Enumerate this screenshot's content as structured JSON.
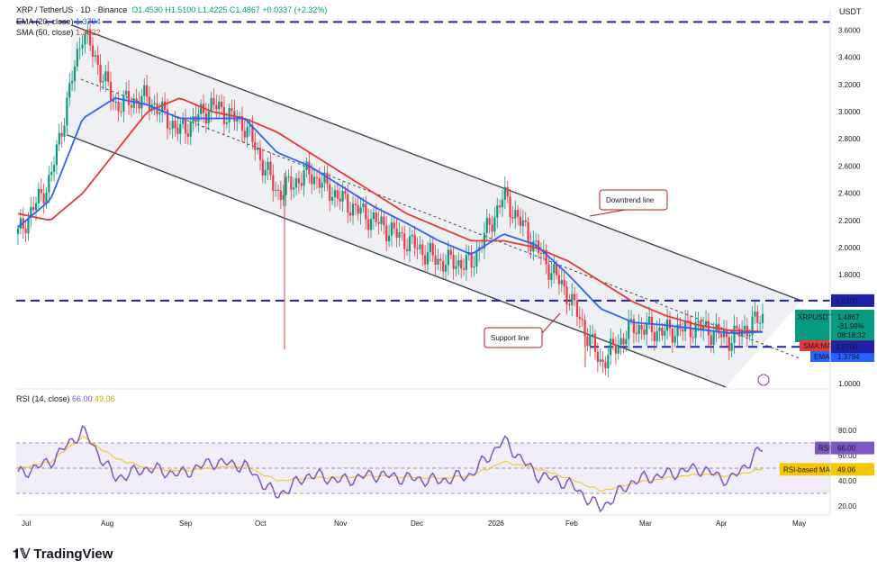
{
  "header": {
    "symbol_line": "XRP / TetherUS · 1D · Binance",
    "ohlc": "O1.4530  H1.5100  L1.4225  C1.4867  +0.0337 (+2.32%)",
    "ema_label": "EMA (20, close)",
    "ema_value": "1.3794",
    "sma_label": "SMA (50, close)",
    "sma_value": "1.3822",
    "rsi_label": "RSI (14, close)",
    "rsi_value": "66.00",
    "rsi_ma_value": "49.06"
  },
  "currency": "USDT",
  "brand": "TradingView",
  "colors": {
    "up": "#089981",
    "down": "#f23645",
    "ema": "#2962ff",
    "sma": "#e53935",
    "level": "#1e22aa",
    "rsi": "#7e57c2",
    "rsi_ma": "#f7c600"
  },
  "chart_data": [
    {
      "type": "line",
      "symbol": "XRPUSDT",
      "x_ticks": [
        "Jul",
        "Aug",
        "Sep",
        "Oct",
        "Nov",
        "Dec",
        "2026",
        "Feb",
        "Mar",
        "Apr",
        "May"
      ],
      "y_ticks": [
        1.0,
        1.2,
        1.4,
        1.6,
        1.8,
        2.0,
        2.2,
        2.4,
        2.6,
        2.8,
        3.0,
        3.2,
        3.4,
        3.6
      ],
      "ylim": [
        0.98,
        3.7
      ],
      "x": [
        "Jul",
        "mid-Jul",
        "late-Jul",
        "Aug",
        "mid-Aug",
        "Sep",
        "mid-Sep",
        "Oct",
        "Oct 10",
        "mid-Oct",
        "Nov",
        "mid-Nov",
        "Dec",
        "mid-Dec",
        "2026",
        "early-Jan",
        "mid-Jan",
        "Feb",
        "Feb 6",
        "mid-Feb",
        "Mar",
        "mid-Mar",
        "Apr",
        "mid-Apr"
      ],
      "series": [
        {
          "name": "XRPUSDT",
          "values": [
            2.1,
            2.5,
            3.6,
            3.05,
            3.1,
            2.85,
            3.05,
            2.9,
            2.4,
            2.55,
            2.35,
            2.2,
            2.05,
            1.9,
            1.88,
            2.38,
            2.0,
            1.65,
            1.15,
            1.42,
            1.38,
            1.42,
            1.33,
            1.4867
          ]
        },
        {
          "name": "EMA",
          "values": [
            2.15,
            2.35,
            2.95,
            3.1,
            3.05,
            2.95,
            2.95,
            2.95,
            2.7,
            2.6,
            2.45,
            2.3,
            2.18,
            2.05,
            1.95,
            2.1,
            2.02,
            1.8,
            1.55,
            1.45,
            1.43,
            1.4,
            1.37,
            1.3794
          ]
        },
        {
          "name": "SMA",
          "values": [
            2.25,
            2.2,
            2.4,
            2.7,
            3.0,
            3.1,
            3.0,
            2.95,
            2.85,
            2.7,
            2.55,
            2.4,
            2.25,
            2.15,
            2.05,
            2.05,
            2.0,
            1.9,
            1.75,
            1.6,
            1.5,
            1.43,
            1.39,
            1.3822
          ]
        }
      ],
      "annotations": [
        "Downtrend line",
        "Support line"
      ],
      "levels": [
        3.66,
        1.61,
        1.27
      ],
      "price_labels": {
        "symbol": "XRPUSDT",
        "last": "1.4867",
        "change": "-31.98%",
        "countdown": "08:18:32",
        "level_high": "1.6100",
        "level_low": "1.2700",
        "sma_tag": "SMA:MA",
        "sma_value": "1.3822",
        "ema_tag": "EMA",
        "ema_value": "1.3794"
      },
      "grid": false
    },
    {
      "type": "line",
      "x_ticks": [
        "Jul",
        "Aug",
        "Sep",
        "Oct",
        "Nov",
        "Dec",
        "2026",
        "Feb",
        "Mar",
        "Apr",
        "May"
      ],
      "y_ticks": [
        20,
        40,
        60,
        80
      ],
      "ylim": [
        12,
        90
      ],
      "levels": [
        70,
        50,
        30
      ],
      "series": [
        {
          "name": "RSI",
          "values": [
            45,
            55,
            80,
            42,
            50,
            45,
            55,
            52,
            28,
            45,
            40,
            45,
            42,
            40,
            45,
            72,
            45,
            38,
            18,
            40,
            45,
            50,
            40,
            66
          ]
        },
        {
          "name": "RSI-based MA",
          "values": [
            50,
            55,
            75,
            58,
            50,
            48,
            50,
            52,
            40,
            42,
            43,
            44,
            43,
            42,
            44,
            55,
            50,
            42,
            32,
            38,
            42,
            45,
            44,
            49.06
          ]
        }
      ],
      "price_labels": {
        "rsi_tag": "RSI",
        "rsi_value": "66.00",
        "ma_tag": "RSI-based MA",
        "ma_value": "49.06"
      }
    }
  ]
}
